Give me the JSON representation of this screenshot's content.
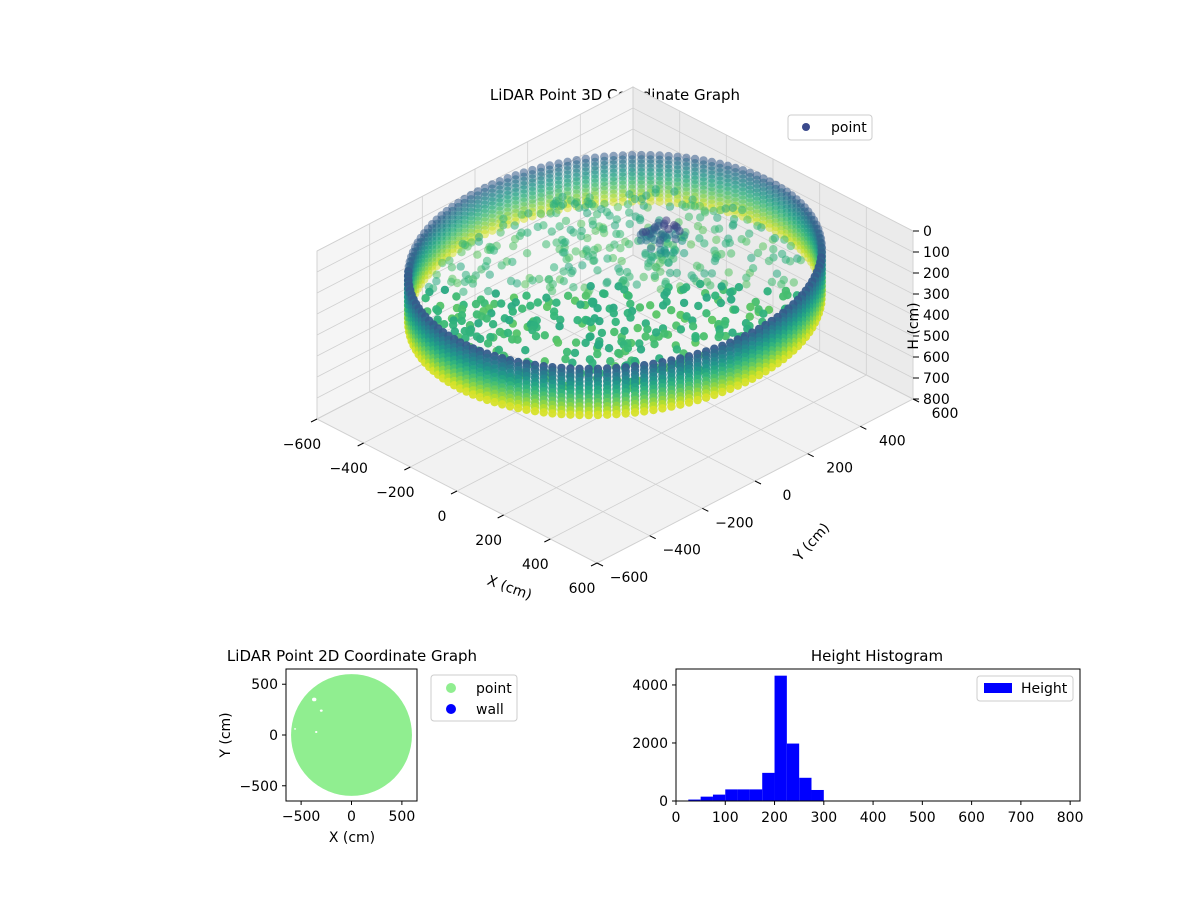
{
  "chart_data": [
    {
      "type": "scatter3d",
      "title": "LiDAR Point 3D Coordinate Graph",
      "xlabel": "X (cm)",
      "ylabel": "Y (cm)",
      "zlabel": "H (cm)",
      "xlim": [
        -600,
        600
      ],
      "ylim": [
        -600,
        600
      ],
      "zlim": [
        0,
        800
      ],
      "z_inverted": true,
      "xticks": [
        "−600",
        "−400",
        "−200",
        "0",
        "200",
        "400",
        "600"
      ],
      "yticks": [
        "−600",
        "−400",
        "−200",
        "0",
        "200",
        "400",
        "600"
      ],
      "zticks": [
        "0",
        "100",
        "200",
        "300",
        "400",
        "500",
        "600",
        "700",
        "800"
      ],
      "legend": {
        "label": "point",
        "placement": "top-right"
      },
      "colormap": "viridis",
      "grid": true,
      "description_points": {
        "wall_radius_cm": 600,
        "wall_height_range_cm": [
          100,
          320
        ],
        "floor_height_cm": 230
      }
    },
    {
      "type": "scatter",
      "title": "LiDAR Point 2D Coordinate Graph",
      "xlabel": "X (cm)",
      "ylabel": "Y (cm)",
      "xlim": [
        -650,
        650
      ],
      "ylim": [
        -650,
        650
      ],
      "xticks": [
        "−500",
        "0",
        "500"
      ],
      "yticks": [
        "−500",
        "0",
        "500"
      ],
      "series": [
        {
          "name": "point",
          "color": "#90ee90",
          "shape": "disk",
          "radius_cm": 600
        },
        {
          "name": "wall",
          "color": "#0000ff",
          "points": []
        }
      ],
      "legend_placement": "outside-right"
    },
    {
      "type": "bar",
      "title": "Height Histogram",
      "xlim": [
        0,
        820
      ],
      "ylim": [
        0,
        4550
      ],
      "xticks": [
        "0",
        "100",
        "200",
        "300",
        "400",
        "500",
        "600",
        "700",
        "800"
      ],
      "yticks": [
        "0",
        "2000",
        "4000"
      ],
      "bin_edges": [
        0,
        25,
        50,
        75,
        100,
        125,
        150,
        175,
        200,
        225,
        250,
        275,
        300,
        325
      ],
      "series": [
        {
          "name": "Height",
          "color": "#0000ff",
          "values": [
            10,
            50,
            150,
            220,
            400,
            400,
            400,
            970,
            4320,
            1980,
            800,
            380,
            0
          ]
        }
      ],
      "legend_placement": "top-right"
    }
  ]
}
